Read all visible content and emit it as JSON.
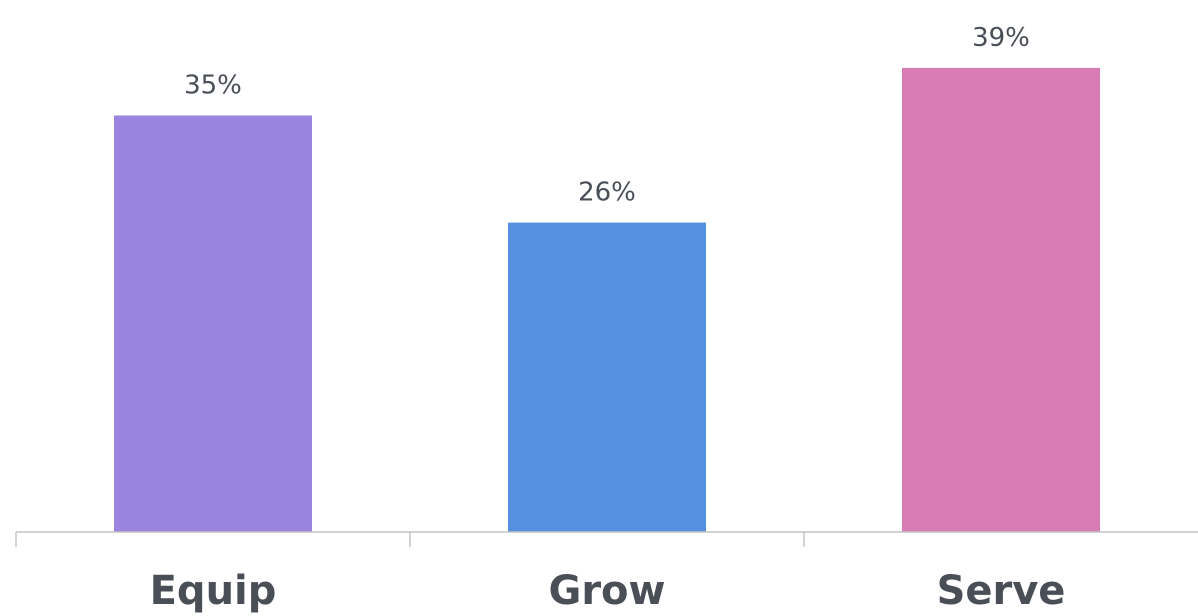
{
  "chart_data": {
    "type": "bar",
    "categories": [
      "Equip",
      "Grow",
      "Serve"
    ],
    "values": [
      35,
      26,
      39
    ],
    "value_labels": [
      "35%",
      "26%",
      "39%"
    ],
    "colors": [
      "#9b84df",
      "#5590e0",
      "#d97bb5"
    ],
    "title": "",
    "xlabel": "",
    "ylabel": "",
    "ylim": [
      0,
      40
    ],
    "grid": false,
    "legend": "none"
  }
}
